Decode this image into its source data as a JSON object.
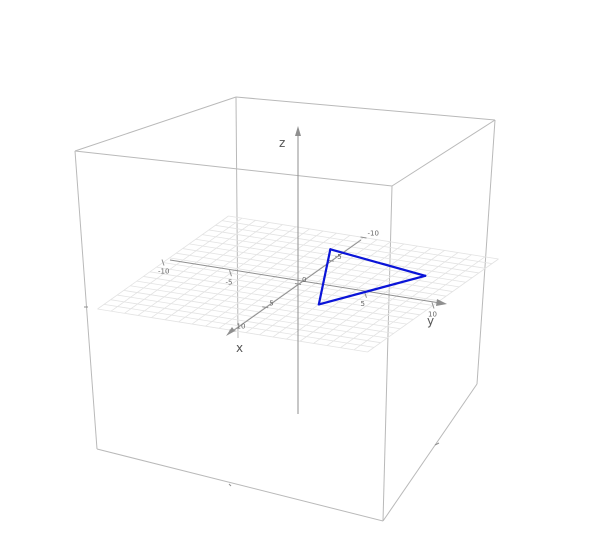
{
  "axes": {
    "x": {
      "label": "x",
      "ticks": [
        "-10",
        "-5",
        "0",
        "5",
        "10"
      ]
    },
    "y": {
      "label": "y",
      "ticks": [
        "-10",
        "-5",
        "0",
        "5",
        "10"
      ]
    },
    "z": {
      "label": "z"
    }
  },
  "grid": {
    "plane": "z=0",
    "range": [
      -10,
      10
    ],
    "step": 1,
    "shown": true
  },
  "bounding_box": {
    "shown": true
  },
  "polygon": {
    "color": "#0a14d8",
    "vertices": [
      [
        -7,
        -1
      ],
      [
        -5,
        7
      ],
      [
        3,
        3
      ]
    ]
  },
  "colors": {
    "box": "#b9b9b9",
    "grid": "#e3e3e3",
    "axis": "#8f8f8f",
    "shape": "#0a14d8"
  }
}
